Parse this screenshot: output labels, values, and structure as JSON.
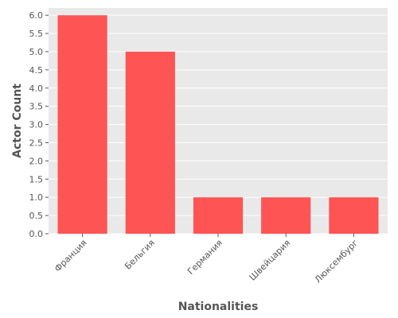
{
  "chart_data": {
    "type": "bar",
    "title": "",
    "xlabel": "Nationalities",
    "ylabel": "Actor Count",
    "categories": [
      "Франция",
      "Бельгия",
      "Германия",
      "Швейцария",
      "Люксембург"
    ],
    "values": [
      6,
      5,
      1,
      1,
      1
    ],
    "ylim": [
      0,
      6.2
    ],
    "yticks": [
      "0.0",
      "0.5",
      "1.0",
      "1.5",
      "2.0",
      "2.5",
      "3.0",
      "3.5",
      "4.0",
      "4.5",
      "5.0",
      "5.5",
      "6.0"
    ],
    "grid": true,
    "legend": "none",
    "colors": {
      "bar": "#ff5454",
      "plot_background": "#e9e9e9",
      "grid": "#ffffff",
      "text": "#555555"
    }
  }
}
